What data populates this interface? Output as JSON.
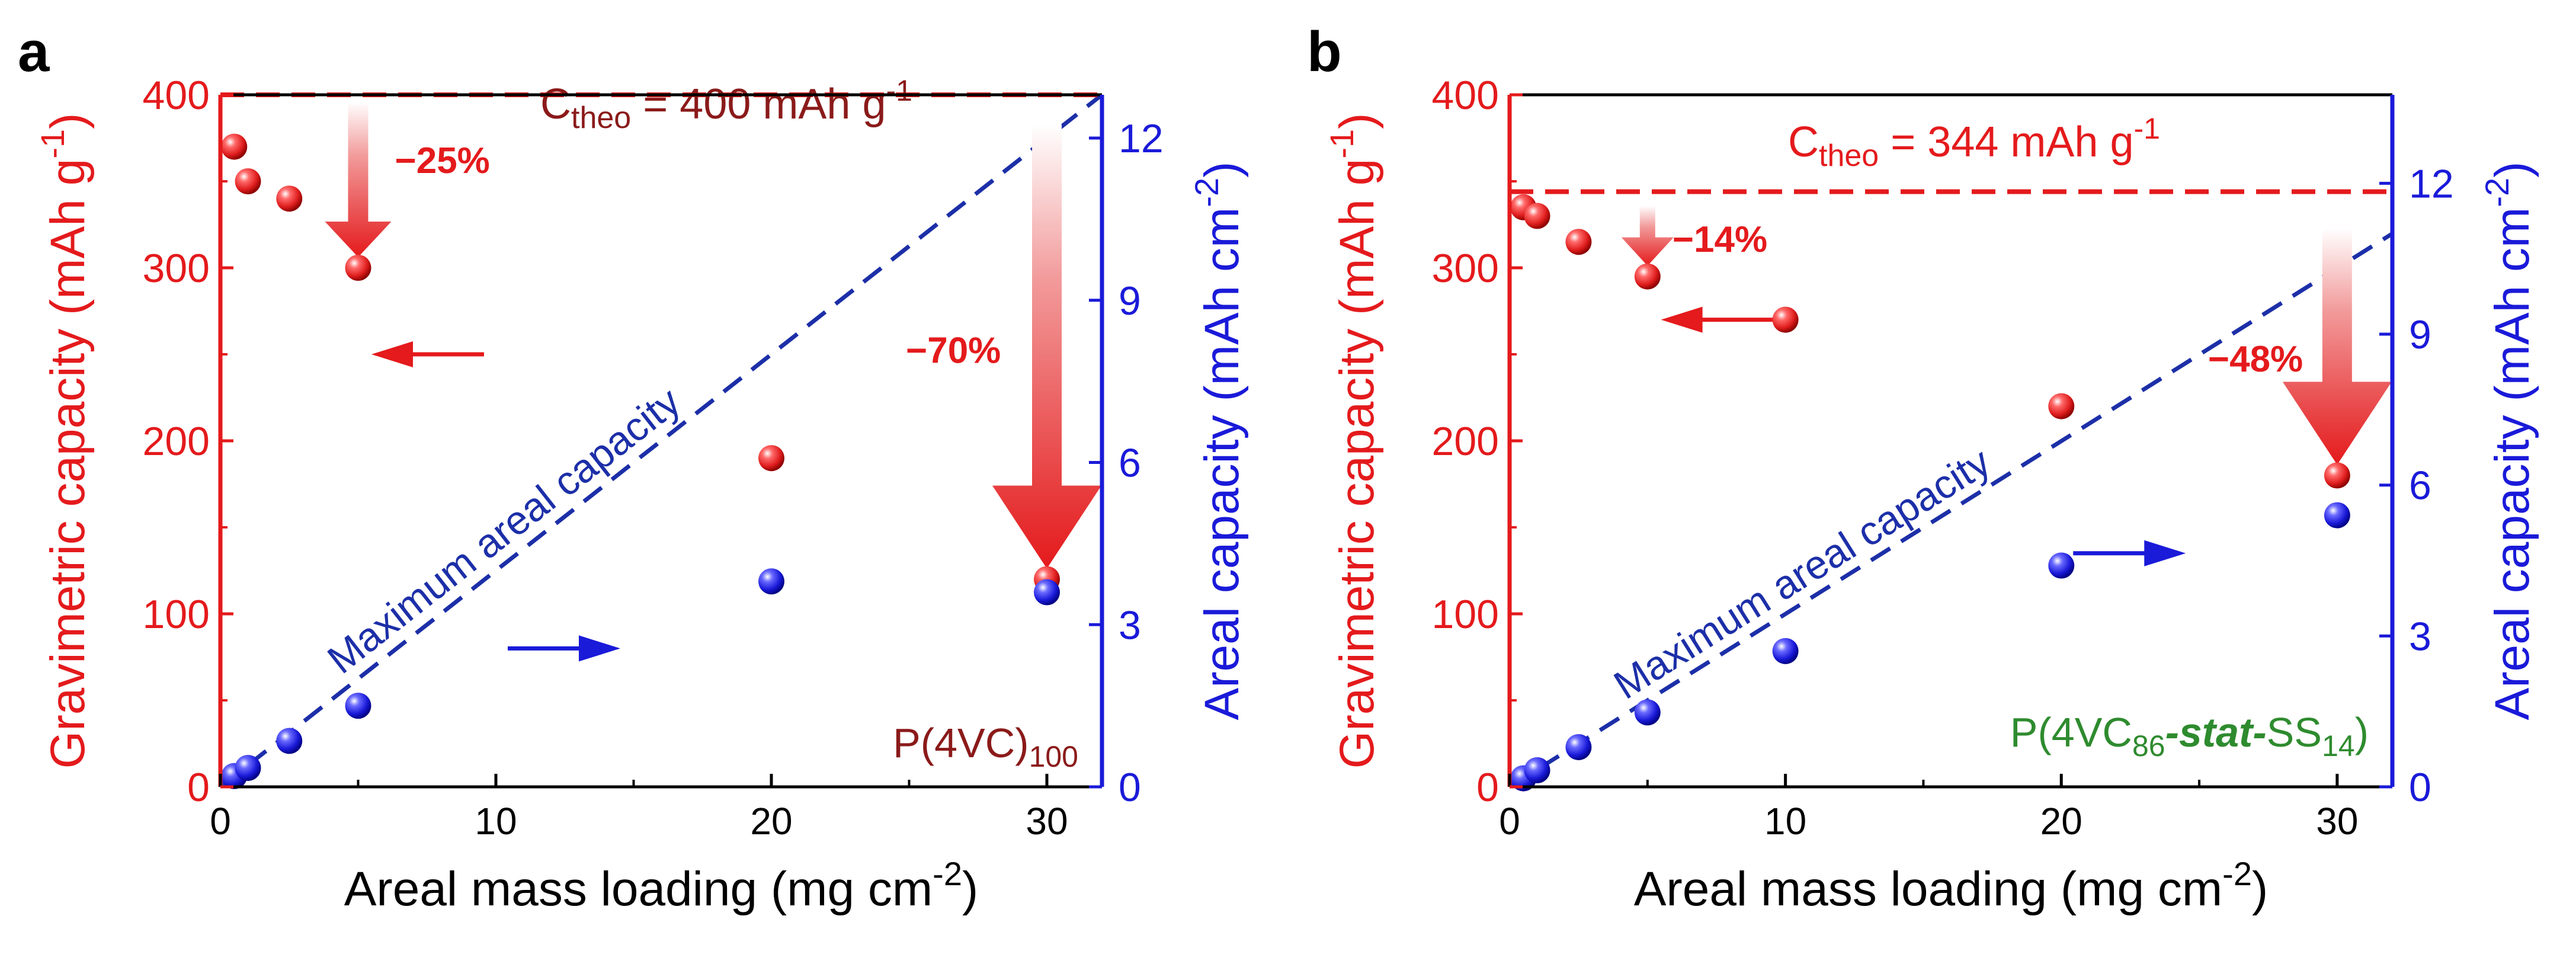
{
  "figure": {
    "x_axis_label": "Areal mass loading (mg cm",
    "x_axis_label_sup": "-2",
    "x_axis_label_end": ")",
    "left_axis_label": "Gravimetric capacity (mAh g",
    "left_axis_label_sup": "-1",
    "left_axis_label_end": ")",
    "right_axis_label": "Areal capacity (mAh cm",
    "right_axis_label_sup": "-2",
    "right_axis_label_end": ")",
    "dashed_line_label": "Maximum areal capacity",
    "colors": {
      "gravimetric": "#E41A1C",
      "areal": "#1A1AD9",
      "dark_red": "#8B1A1A",
      "green": "#2E8B2E",
      "dashed_blue": "#1C2FA8"
    }
  },
  "chart_data": [
    {
      "panel_label": "a",
      "type": "scatter",
      "xlabel": "Areal mass loading (mg cm-2)",
      "ylabel_left": "Gravimetric capacity (mAh g-1)",
      "ylabel_right": "Areal capacity (mAh cm-2)",
      "xlim": [
        0,
        32
      ],
      "ylim_left": [
        0,
        400
      ],
      "ylim_right": [
        0,
        12.8
      ],
      "x_ticks": [
        0,
        10,
        20,
        30
      ],
      "y_left_ticks": [
        0,
        100,
        200,
        300,
        400
      ],
      "y_right_ticks": [
        0,
        3,
        6,
        9,
        12
      ],
      "theoretical_capacity": 400,
      "theoretical_label": {
        "prefix": "C",
        "sub": "theo",
        "suffix": " = 400 mAh g",
        "sup": "-1"
      },
      "sample_label": {
        "prefix": "P(4VC)",
        "sub": "100"
      },
      "gravimetric_series": {
        "name": "Gravimetric capacity",
        "x": [
          0.5,
          1,
          2.5,
          5,
          20,
          30
        ],
        "y": [
          370,
          350,
          340,
          300,
          190,
          120
        ]
      },
      "areal_series": {
        "name": "Areal capacity",
        "x": [
          0.5,
          1,
          2.5,
          5,
          20,
          30
        ],
        "y": [
          0.2,
          0.35,
          0.85,
          1.5,
          3.8,
          3.6
        ]
      },
      "max_areal_line": {
        "x": [
          0,
          32
        ],
        "y": [
          0,
          12.8
        ]
      },
      "drop_annotations": [
        {
          "label": "−25%",
          "x": 5,
          "from": 400,
          "to": 300,
          "style": "outline"
        },
        {
          "label": "−70%",
          "x": 30,
          "from": 400,
          "to": 120,
          "style": "gradient"
        }
      ],
      "axis_arrows": [
        {
          "direction": "left",
          "at_x": 10,
          "at_y": 250,
          "color": "red"
        },
        {
          "direction": "right",
          "at_x": 10,
          "at_y": 80,
          "color": "blue"
        }
      ]
    },
    {
      "panel_label": "b",
      "type": "scatter",
      "xlabel": "Areal mass loading (mg cm-2)",
      "ylabel_left": "Gravimetric capacity (mAh g-1)",
      "ylabel_right": "Areal capacity (mAh cm-2)",
      "xlim": [
        0,
        32
      ],
      "ylim_left": [
        0,
        400
      ],
      "ylim_right": [
        0,
        13.76
      ],
      "x_ticks": [
        0,
        10,
        20,
        30
      ],
      "y_left_ticks": [
        0,
        100,
        200,
        300,
        400
      ],
      "y_right_ticks": [
        0,
        3,
        6,
        9,
        12
      ],
      "theoretical_capacity": 344,
      "theoretical_label": {
        "prefix": "C",
        "sub": "theo",
        "suffix": " = 344 mAh g",
        "sup": "-1"
      },
      "sample_label": {
        "prefix": "P(4VC",
        "sub1": "86",
        "italic": "-stat-",
        "mid": "SS",
        "sub2": "14",
        "suffix": ")"
      },
      "gravimetric_series": {
        "name": "Gravimetric capacity",
        "x": [
          0.5,
          1,
          2.5,
          5,
          10,
          20,
          30
        ],
        "y": [
          335,
          330,
          315,
          295,
          270,
          220,
          180
        ]
      },
      "areal_series": {
        "name": "Areal capacity",
        "x": [
          0.5,
          1,
          2.5,
          5,
          10,
          20,
          30
        ],
        "y": [
          0.17,
          0.33,
          0.79,
          1.48,
          2.7,
          4.4,
          5.4
        ]
      },
      "max_areal_line": {
        "x": [
          0,
          32
        ],
        "y": [
          0,
          11.0
        ]
      },
      "drop_annotations": [
        {
          "label": "−14%",
          "x": 5,
          "from": 340,
          "to": 295,
          "style": "outline"
        },
        {
          "label": "−48%",
          "x": 30,
          "from": 340,
          "to": 180,
          "style": "gradient"
        }
      ],
      "axis_arrows": [
        {
          "direction": "left",
          "at_x": 10,
          "at_y": 270,
          "color": "red"
        },
        {
          "direction": "right",
          "at_x": 20,
          "at_y": 135,
          "color": "blue"
        }
      ]
    }
  ]
}
